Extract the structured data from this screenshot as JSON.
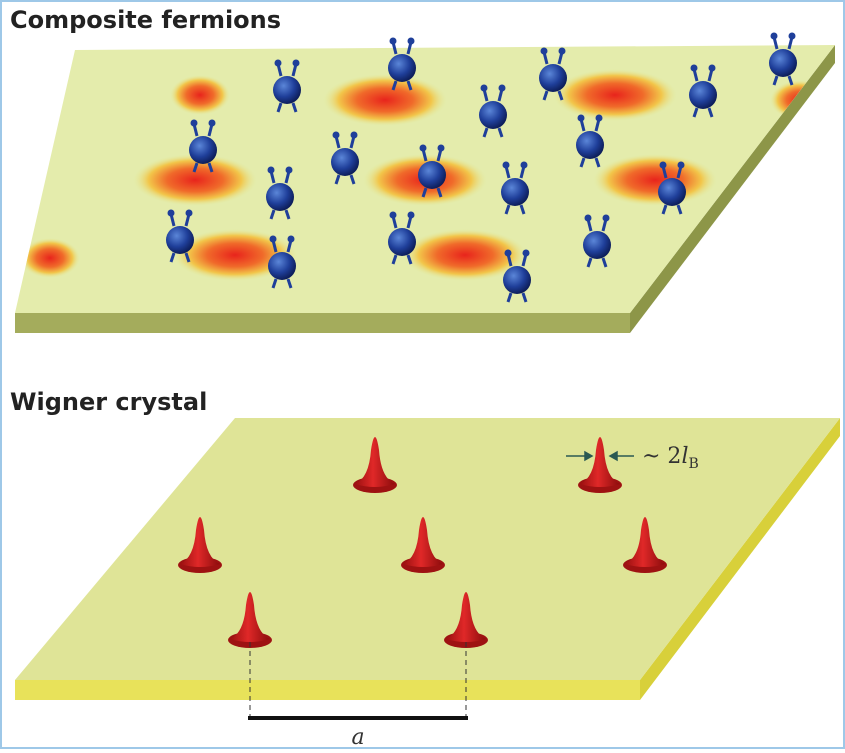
{
  "panels": [
    {
      "title": "Composite fermions"
    },
    {
      "title": "Wigner crystal",
      "width_label": {
        "prefix": "~ 2",
        "symbol": "l",
        "subscript": "B"
      },
      "spacing_label": "a"
    }
  ]
}
